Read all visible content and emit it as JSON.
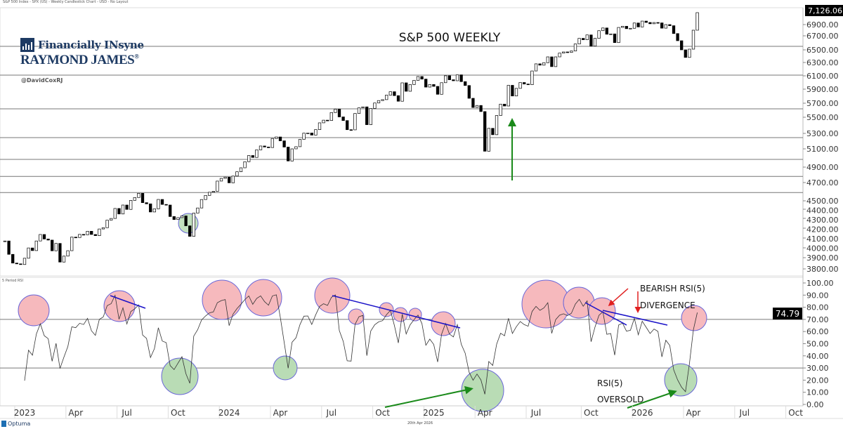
{
  "header": {
    "chart_caption": "S&P 500 Index - SPX (US) - Weekly Candlestick Chart - USD - No Layout",
    "rsi_panel_caption": "5 Period RSI"
  },
  "branding": {
    "logo_line1": "Financially INsyne",
    "logo_line2": "RAYMOND JAMES",
    "logo_mark": "®",
    "handle": "@DavidCoxRJ"
  },
  "footer": {
    "app": "Optuma",
    "date": "20th Apr 2026"
  },
  "colors": {
    "up_candle": "#ffffff",
    "down_candle": "#000000",
    "overbought_circle": "#f6b9bd",
    "oversold_circle": "#b9dcb5",
    "circle_outline": "#6a66d8",
    "trendline": "#1a12c8",
    "green_arrow": "#1a8a1a",
    "red_arrow": "#e02020"
  },
  "chart_data": [
    {
      "type": "candlestick",
      "title": "S&P 500 WEEKLY",
      "frequency": "weekly",
      "week_start": "2022-11-28",
      "closes": [
        4070,
        3934,
        3852,
        3845,
        3839,
        3895,
        3999,
        3972,
        4070,
        4136,
        4090,
        4079,
        3970,
        4045,
        3861,
        3916,
        3971,
        4109,
        4105,
        4137,
        4133,
        4169,
        4136,
        4124,
        4192,
        4205,
        4282,
        4299,
        4409,
        4348,
        4450,
        4398,
        4505,
        4536,
        4582,
        4478,
        4464,
        4370,
        4405,
        4515,
        4457,
        4450,
        4320,
        4288,
        4308,
        4327,
        4224,
        4117,
        4358,
        4415,
        4514,
        4559,
        4594,
        4604,
        4719,
        4754,
        4770,
        4697,
        4784,
        4840,
        4891,
        4959,
        5027,
        5006,
        5089,
        5137,
        5124,
        5117,
        5234,
        5254,
        5204,
        5123,
        4967,
        5100,
        5128,
        5223,
        5303,
        5305,
        5278,
        5347,
        5431,
        5464,
        5460,
        5567,
        5615,
        5505,
        5459,
        5346,
        5344,
        5554,
        5634,
        5648,
        5408,
        5626,
        5703,
        5738,
        5751,
        5815,
        5864,
        5808,
        5728,
        5995,
        5870,
        5969,
        6032,
        6090,
        6051,
        5931,
        5970,
        5942,
        5827,
        5997,
        6101,
        6041,
        6026,
        6115,
        6013,
        5955,
        5770,
        5639,
        5668,
        5581,
        5074,
        5363,
        5283,
        5525,
        5687,
        5660,
        5958,
        5803,
        5912,
        6000,
        5977,
        5967,
        6173,
        6280,
        6260,
        6297,
        6389,
        6238,
        6389,
        6449,
        6467,
        6460,
        6482,
        6584,
        6664,
        6644,
        6716,
        6553,
        6664,
        6791,
        6840,
        6728,
        6734,
        6603,
        6849,
        6870,
        6827,
        6834,
        6930,
        6858,
        6966,
        6940,
        6915,
        6939,
        6932,
        6836,
        6900,
        6880,
        6740,
        6630,
        6500,
        6380,
        6510,
        6800,
        7126
      ],
      "last_price_label": "7,126.06",
      "y_scale": "compressed (non-linear)",
      "y_ticks": [
        "3800.00",
        "3900.00",
        "4000.00",
        "4100.00",
        "4200.00",
        "4300.00",
        "4400.00",
        "4500.00",
        "4700.00",
        "4900.00",
        "5100.00",
        "5300.00",
        "5500.00",
        "5700.00",
        "5900.00",
        "6100.00",
        "6300.00",
        "6500.00",
        "6700.00",
        "6900.00"
      ],
      "horizontal_levels": [
        6550,
        6110,
        5620,
        5245,
        4985,
        4780,
        4590
      ],
      "annotations": {
        "oversold_circle_dates": [
          "2023-10-23"
        ],
        "up_arrow": "2025-05"
      }
    },
    {
      "type": "line",
      "title": "5 Period RSI",
      "indicator": "RSI(5) of weekly closes",
      "ylim": [
        0,
        100
      ],
      "y_ticks": [
        "100.00",
        "90.00",
        "80.00",
        "70.00",
        "60.00",
        "50.00",
        "40.00",
        "30.00",
        "20.00",
        "10.00",
        "0.00"
      ],
      "reference_lines": [
        70,
        30
      ],
      "last_value_label": "74.79",
      "annotations": {
        "divergence_text_1": "BEARISH RSI(5)",
        "divergence_text_2": "DIVERGENCE",
        "oversold_text_1": "RSI(5)",
        "oversold_text_2": "OVERSOLD"
      }
    }
  ],
  "x_axis": {
    "labels": [
      {
        "text": "2023",
        "date": "2023-01-02"
      },
      {
        "text": "Apr",
        "date": "2023-04-03"
      },
      {
        "text": "Jul",
        "date": "2023-07-03"
      },
      {
        "text": "Oct",
        "date": "2023-10-02"
      },
      {
        "text": "2024",
        "date": "2024-01-01"
      },
      {
        "text": "Apr",
        "date": "2024-04-01"
      },
      {
        "text": "Jul",
        "date": "2024-07-01"
      },
      {
        "text": "Oct",
        "date": "2024-09-30"
      },
      {
        "text": "2025",
        "date": "2024-12-30"
      },
      {
        "text": "Apr",
        "date": "2025-03-31"
      },
      {
        "text": "Jul",
        "date": "2025-06-30"
      },
      {
        "text": "Oct",
        "date": "2025-10-06"
      },
      {
        "text": "2026",
        "date": "2026-01-05"
      },
      {
        "text": "Apr",
        "date": "2026-04-06"
      },
      {
        "text": "Jul",
        "date": "2026-07-06"
      },
      {
        "text": "Oct",
        "date": "2026-10-05"
      }
    ]
  }
}
